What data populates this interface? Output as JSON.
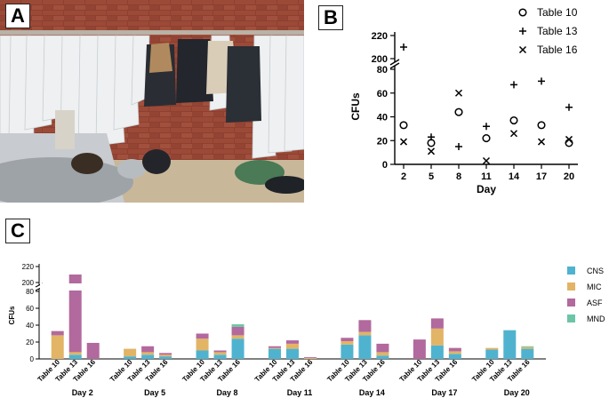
{
  "panels": {
    "a": "A",
    "b": "B",
    "c": "C"
  },
  "colors": {
    "CNS": "#4fb3cf",
    "MIC": "#e2b465",
    "ASF": "#b2699d",
    "MND": "#6cc5a6"
  },
  "chart_data": [
    {
      "type": "scatter",
      "panel": "B",
      "xlabel": "Day",
      "ylabel": "CFUs",
      "x": [
        2,
        5,
        8,
        11,
        14,
        17,
        20
      ],
      "x_ticks": [
        "2",
        "5",
        "8",
        "11",
        "14",
        "17",
        "20"
      ],
      "y_ticks": [
        "0",
        "20",
        "40",
        "60",
        "80",
        "200",
        "220"
      ],
      "y_break": [
        80,
        200
      ],
      "legend_position": "top-right",
      "series": [
        {
          "name": "Table 10",
          "marker": "○",
          "values": [
            33,
            18,
            44,
            22,
            37,
            33,
            18
          ]
        },
        {
          "name": "Table 13",
          "marker": "+",
          "values": [
            210,
            23,
            15,
            32,
            67,
            70,
            48
          ]
        },
        {
          "name": "Table 16",
          "marker": "×",
          "values": [
            19,
            11,
            60,
            3,
            26,
            19,
            21
          ]
        }
      ]
    },
    {
      "type": "bar",
      "stacked": true,
      "panel": "C",
      "ylabel": "CFUs",
      "y_ticks": [
        "0",
        "20",
        "40",
        "60",
        "80",
        "200",
        "220"
      ],
      "y_break": [
        80,
        200
      ],
      "legend_position": "right",
      "stack_order": [
        "CNS",
        "MIC",
        "ASF",
        "MND"
      ],
      "legend": [
        "CNS",
        "MIC",
        "ASF",
        "MND"
      ],
      "groups": [
        {
          "day": "Day 2",
          "bars": [
            {
              "label": "Table 10",
              "CNS": 0,
              "MIC": 28,
              "ASF": 5,
              "MND": 0
            },
            {
              "label": "Table 13",
              "CNS": 5,
              "MIC": 3,
              "ASF": 202,
              "MND": 0
            },
            {
              "label": "Table 16",
              "CNS": 0,
              "MIC": 0,
              "ASF": 19,
              "MND": 0
            }
          ]
        },
        {
          "day": "Day 5",
          "bars": [
            {
              "label": "Table 10",
              "CNS": 3,
              "MIC": 9,
              "ASF": 0,
              "MND": 0
            },
            {
              "label": "Table 13",
              "CNS": 5,
              "MIC": 3,
              "ASF": 7,
              "MND": 0
            },
            {
              "label": "Table 16",
              "CNS": 3,
              "MIC": 2,
              "ASF": 2,
              "MND": 0
            }
          ]
        },
        {
          "day": "Day 8",
          "bars": [
            {
              "label": "Table 10",
              "CNS": 10,
              "MIC": 14,
              "ASF": 6,
              "MND": 0
            },
            {
              "label": "Table 13",
              "CNS": 5,
              "MIC": 3,
              "ASF": 2,
              "MND": 0
            },
            {
              "label": "Table 16",
              "CNS": 24,
              "MIC": 4,
              "ASF": 10,
              "MND": 3
            }
          ]
        },
        {
          "day": "Day 11",
          "bars": [
            {
              "label": "Table 10",
              "CNS": 12,
              "MIC": 1,
              "ASF": 2,
              "MND": 0
            },
            {
              "label": "Table 13",
              "CNS": 12,
              "MIC": 6,
              "ASF": 4,
              "MND": 0
            },
            {
              "label": "Table 16",
              "CNS": 0,
              "MIC": 1,
              "ASF": 1,
              "MND": 0
            }
          ]
        },
        {
          "day": "Day 14",
          "bars": [
            {
              "label": "Table 10",
              "CNS": 17,
              "MIC": 4,
              "ASF": 4,
              "MND": 0
            },
            {
              "label": "Table 13",
              "CNS": 28,
              "MIC": 4,
              "ASF": 14,
              "MND": 0
            },
            {
              "label": "Table 16",
              "CNS": 4,
              "MIC": 4,
              "ASF": 10,
              "MND": 0
            }
          ]
        },
        {
          "day": "Day 17",
          "bars": [
            {
              "label": "Table 10",
              "CNS": 0,
              "MIC": 0,
              "ASF": 23,
              "MND": 0
            },
            {
              "label": "Table 13",
              "CNS": 16,
              "MIC": 20,
              "ASF": 12,
              "MND": 0
            },
            {
              "label": "Table 16",
              "CNS": 6,
              "MIC": 3,
              "ASF": 4,
              "MND": 0
            }
          ]
        },
        {
          "day": "Day 20",
          "bars": [
            {
              "label": "Table 10",
              "CNS": 11,
              "MIC": 2,
              "ASF": 0,
              "MND": 0
            },
            {
              "label": "Table 13",
              "CNS": 34,
              "MIC": 0,
              "ASF": 0,
              "MND": 0
            },
            {
              "label": "Table 16",
              "CNS": 12,
              "MIC": 2,
              "ASF": 0,
              "MND": 1
            }
          ]
        }
      ]
    }
  ]
}
